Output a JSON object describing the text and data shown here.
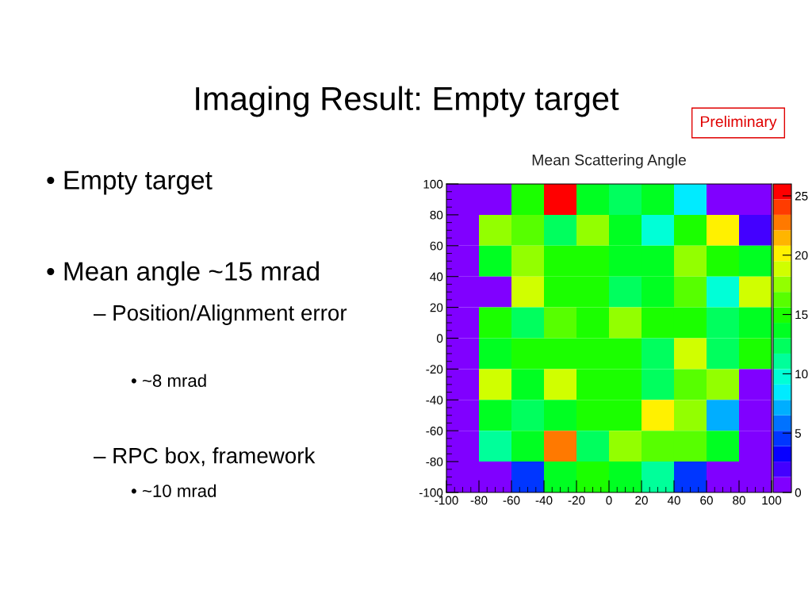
{
  "chart_data": {
    "type": "heatmap",
    "title": "Mean Scattering Angle",
    "annotations": [
      "Imaging Result: Empty target",
      "Preliminary",
      "• Empty target",
      "• Mean angle ~15 mrad",
      "– Position/Alignment error",
      "• ~8 mrad",
      "– RPC box, framework",
      "• ~10 mrad"
    ],
    "x": [
      -90,
      -70,
      -50,
      -30,
      -10,
      10,
      30,
      50,
      70,
      90
    ],
    "y": [
      90,
      70,
      50,
      30,
      10,
      -10,
      -30,
      -50,
      -70,
      -90
    ],
    "cells": [
      [
        0,
        1,
        15,
        25,
        14,
        12,
        13,
        9,
        1,
        0
      ],
      [
        0,
        18,
        16,
        12,
        17,
        14,
        10,
        15,
        20,
        2
      ],
      [
        0,
        14,
        17,
        15,
        15,
        14,
        14,
        17,
        15,
        14
      ],
      [
        0,
        0,
        19,
        15,
        15,
        12,
        14,
        16,
        10,
        19
      ],
      [
        0,
        15,
        12,
        16,
        15,
        17,
        15,
        15,
        12,
        14
      ],
      [
        0,
        14,
        15,
        15,
        15,
        15,
        12,
        19,
        12,
        15
      ],
      [
        0,
        19,
        14,
        19,
        15,
        15,
        12,
        16,
        18,
        1
      ],
      [
        0,
        14,
        12,
        14,
        15,
        15,
        20,
        17,
        7,
        0
      ],
      [
        0,
        11,
        14,
        23,
        12,
        17,
        16,
        16,
        14,
        0
      ],
      [
        0,
        0,
        4,
        14,
        15,
        14,
        11,
        4,
        1,
        0
      ]
    ],
    "colors": [
      "#8000ff",
      "#4300ff",
      "#0700ff",
      "#0036ff",
      "#0072ff",
      "#00aeff",
      "#00ebff",
      "#00ffd7",
      "#00ff9a",
      "#00ff5e",
      "#00ff22",
      "#1bff00",
      "#57ff00",
      "#93ff00",
      "#d0ff00",
      "#fff100",
      "#ffb500",
      "#ff7900",
      "#ff3c00",
      "#ff0000"
    ],
    "clim": [
      0,
      26
    ],
    "cticks": [
      0,
      5,
      10,
      15,
      20,
      25
    ],
    "xlim": [
      -100,
      100
    ],
    "xticks": [
      -100,
      -80,
      -60,
      -40,
      -20,
      0,
      20,
      40,
      60,
      80,
      100
    ],
    "ylim": [
      -100,
      100
    ],
    "yticks": [
      -100,
      -80,
      -60,
      -40,
      -20,
      0,
      20,
      40,
      60,
      80,
      100
    ]
  }
}
